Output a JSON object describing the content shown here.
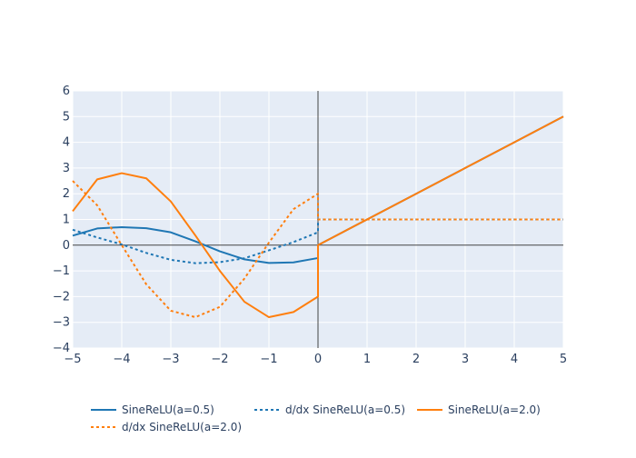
{
  "chart_data": {
    "type": "line",
    "title": "",
    "xlabel": "",
    "ylabel": "",
    "xlim": [
      -5,
      5
    ],
    "ylim": [
      -4,
      6
    ],
    "x_ticks": [
      -5,
      -4,
      -3,
      -2,
      -1,
      0,
      1,
      2,
      3,
      4,
      5
    ],
    "y_ticks": [
      -4,
      -3,
      -2,
      -1,
      0,
      1,
      2,
      3,
      4,
      5,
      6
    ],
    "x_tick_labels": [
      "−5",
      "−4",
      "−3",
      "−2",
      "−1",
      "0",
      "1",
      "2",
      "3",
      "4",
      "5"
    ],
    "y_tick_labels": [
      "−4",
      "−3",
      "−2",
      "−1",
      "0",
      "1",
      "2",
      "3",
      "4",
      "5",
      "6"
    ],
    "grid": true,
    "legend_position": "bottom",
    "series": [
      {
        "name": "SineReLU(a=0.5)",
        "color": "#1f77b4",
        "dash": "solid",
        "x": [
          -5,
          -4.5,
          -4,
          -3.5,
          -3,
          -2.5,
          -2,
          -1.5,
          -1,
          -0.5,
          0,
          0,
          1,
          2,
          3,
          4,
          5
        ],
        "y": [
          0.37,
          0.65,
          0.7,
          0.66,
          0.5,
          0.15,
          -0.24,
          -0.55,
          -0.69,
          -0.67,
          -0.5,
          0,
          1,
          2,
          3,
          4,
          5
        ]
      },
      {
        "name": "d/dx SineReLU(a=0.5)",
        "color": "#1f77b4",
        "dash": "dot",
        "x": [
          -5,
          -4.5,
          -4,
          -3.5,
          -3,
          -2.5,
          -2,
          -1.5,
          -1,
          -0.5,
          0,
          0,
          5
        ],
        "y": [
          0.6,
          0.3,
          0.03,
          -0.3,
          -0.57,
          -0.7,
          -0.66,
          -0.51,
          -0.2,
          0.12,
          0.5,
          1,
          1
        ]
      },
      {
        "name": "SineReLU(a=2.0)",
        "color": "#ff7f0e",
        "dash": "solid",
        "x": [
          -5,
          -4.5,
          -4,
          -3.5,
          -3,
          -2.5,
          -2,
          -1.5,
          -1,
          -0.5,
          0,
          0,
          1,
          2,
          3,
          4,
          5
        ],
        "y": [
          1.32,
          2.56,
          2.8,
          2.6,
          1.7,
          0.38,
          -1.0,
          -2.2,
          -2.8,
          -2.6,
          -2.0,
          0,
          1,
          2,
          3,
          4,
          5
        ]
      },
      {
        "name": "d/dx SineReLU(a=2.0)",
        "color": "#ff7f0e",
        "dash": "dot",
        "x": [
          -5,
          -4.5,
          -4,
          -3.5,
          -3,
          -2.5,
          -2,
          -1.5,
          -1,
          -0.5,
          0,
          0,
          5
        ],
        "y": [
          2.5,
          1.55,
          0.0,
          -1.52,
          -2.55,
          -2.8,
          -2.4,
          -1.3,
          0.1,
          1.4,
          2.0,
          1,
          1
        ]
      }
    ]
  }
}
